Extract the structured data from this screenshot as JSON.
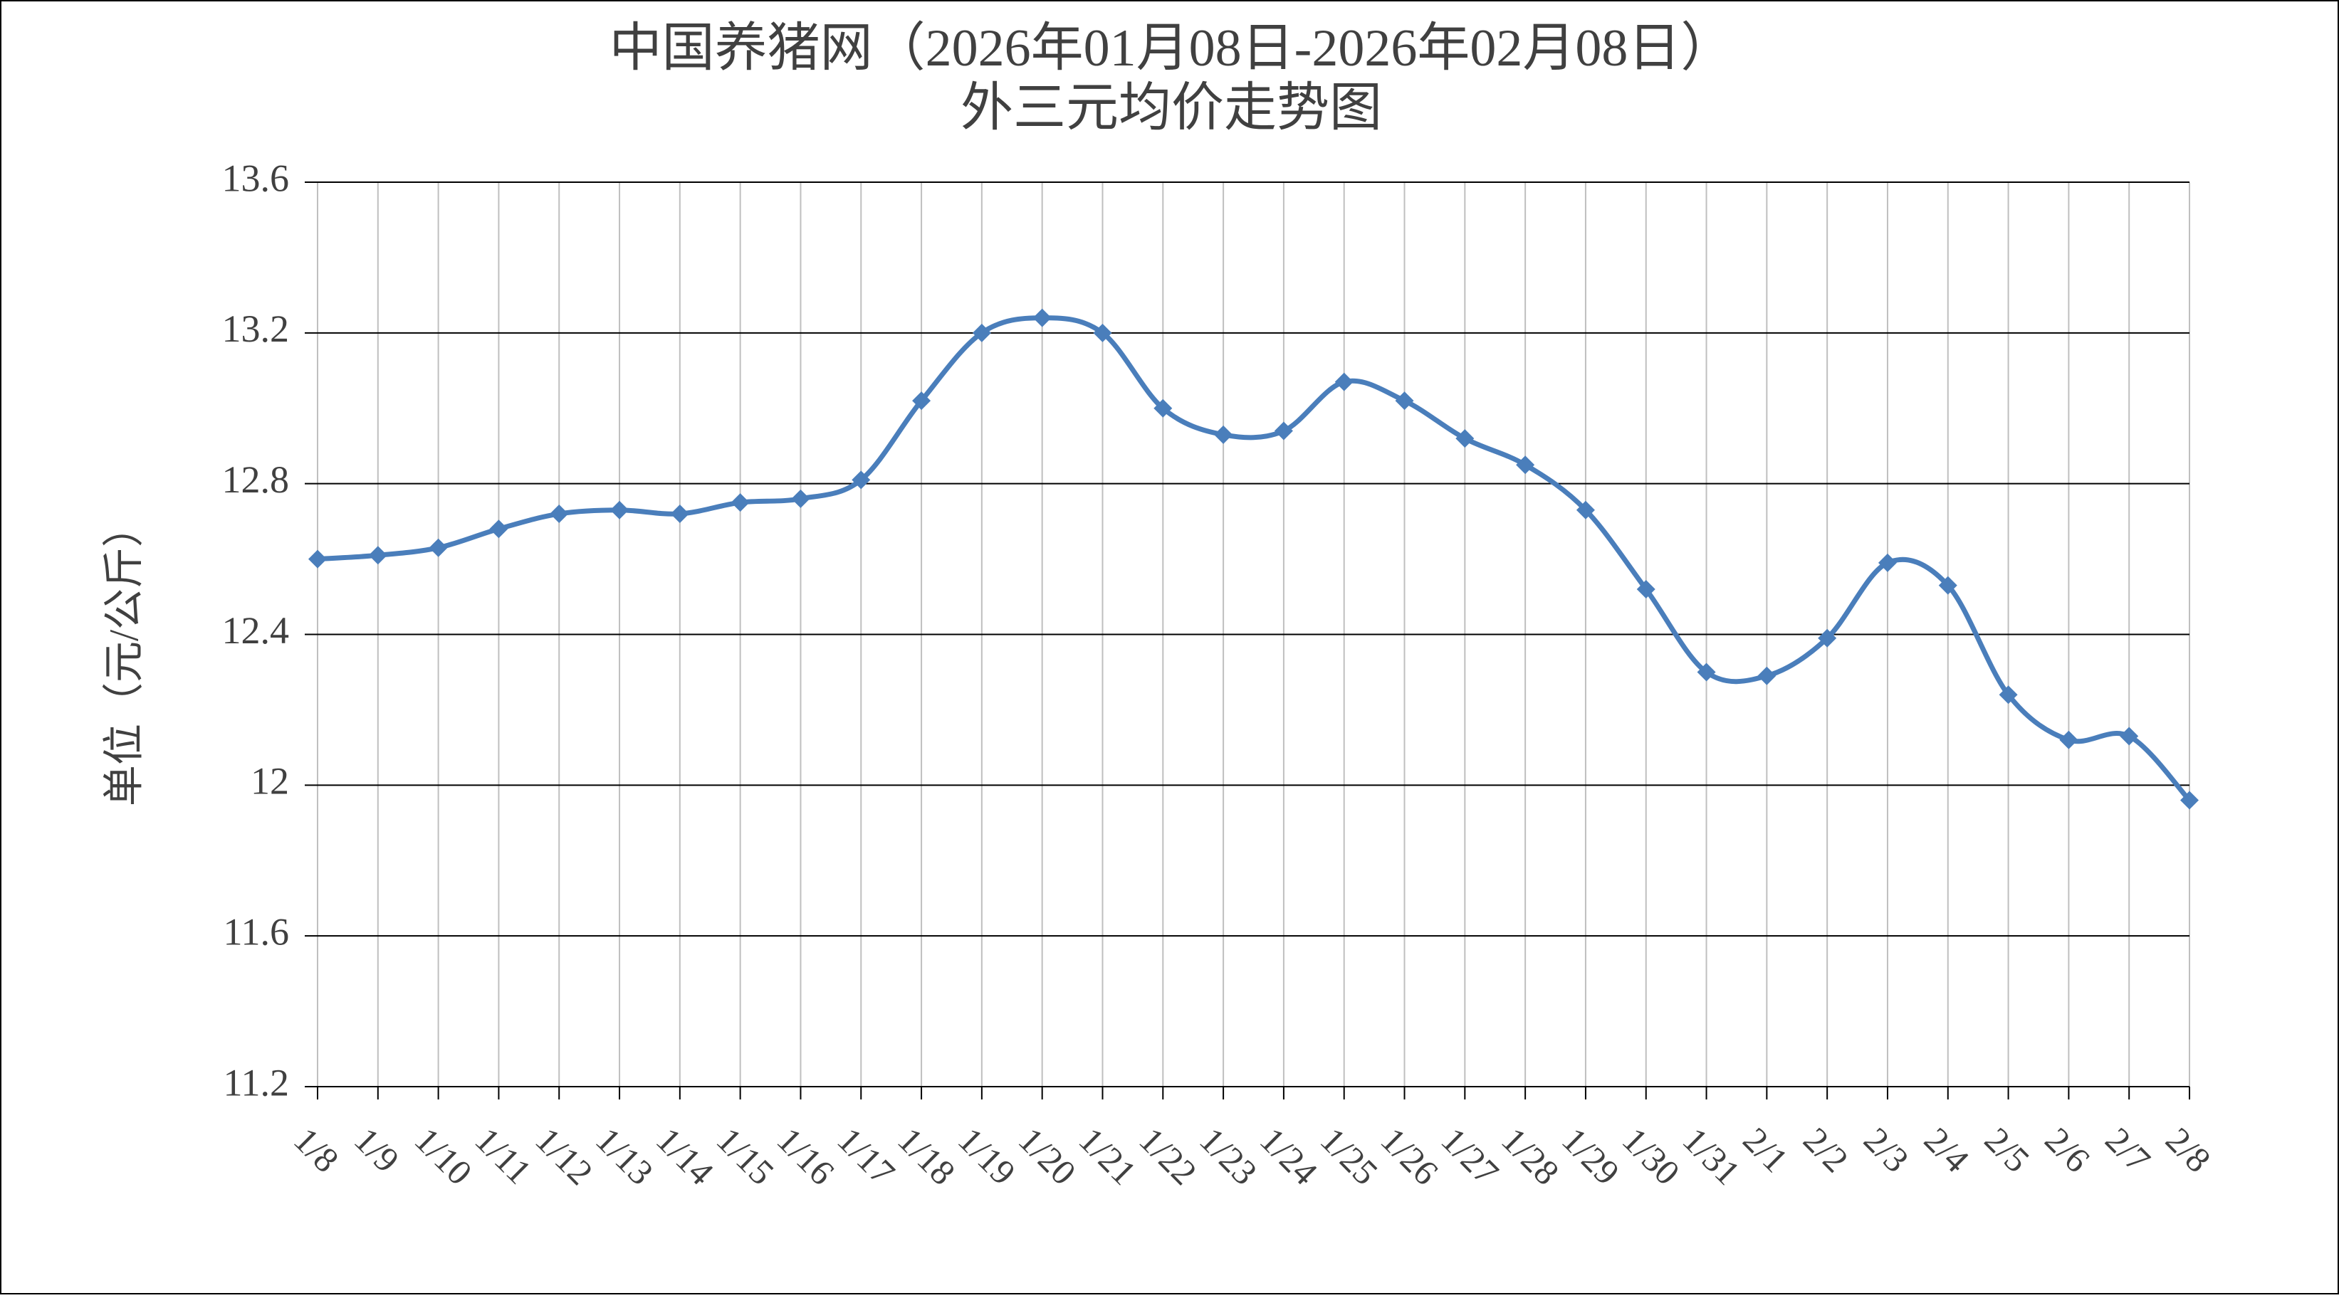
{
  "chart_data": {
    "type": "line",
    "title": "中国养猪网（2026年01月08日-2026年02月08日）",
    "subtitle": "外三元均价走势图",
    "y_label": "单位（元/公斤）",
    "categories": [
      "1/8",
      "1/9",
      "1/10",
      "1/11",
      "1/12",
      "1/13",
      "1/14",
      "1/15",
      "1/16",
      "1/17",
      "1/18",
      "1/19",
      "1/20",
      "1/21",
      "1/22",
      "1/23",
      "1/24",
      "1/25",
      "1/26",
      "1/27",
      "1/28",
      "1/29",
      "1/30",
      "1/31",
      "2/1",
      "2/2",
      "2/3",
      "2/4",
      "2/5",
      "2/6",
      "2/7",
      "2/8"
    ],
    "series": [
      {
        "color": "#4a7ebb",
        "values": [
          12.6,
          12.61,
          12.63,
          12.68,
          12.72,
          12.73,
          12.72,
          12.75,
          12.76,
          12.81,
          13.02,
          13.2,
          13.24,
          13.2,
          13.0,
          12.93,
          12.94,
          13.07,
          13.02,
          12.92,
          12.85,
          12.73,
          12.52,
          12.3,
          12.29,
          12.39,
          12.59,
          12.53,
          12.24,
          12.12,
          12.13,
          11.96
        ]
      }
    ],
    "ylim": [
      11.2,
      13.6
    ],
    "yticks": [
      11.2,
      11.6,
      12,
      12.4,
      12.8,
      13.2,
      13.6
    ],
    "grid": true
  }
}
